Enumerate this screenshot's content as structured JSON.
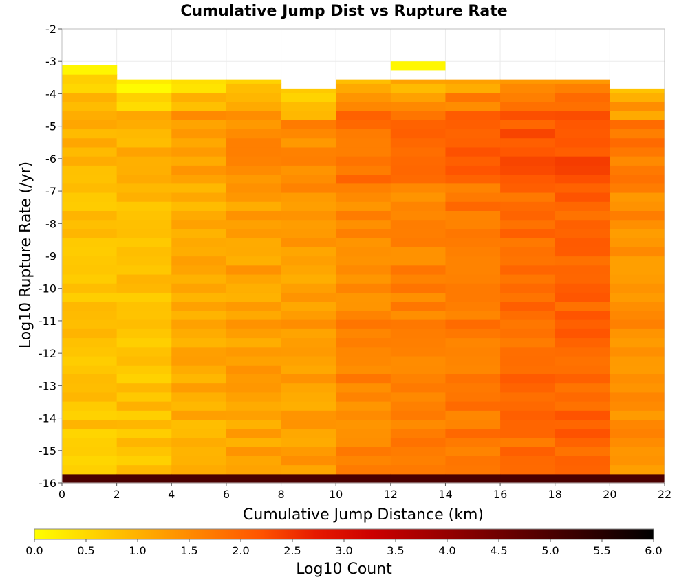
{
  "chart_data": {
    "type": "heatmap",
    "title": "Cumulative Jump Dist vs Rupture Rate",
    "xlabel": "Cumulative Jump Distance (km)",
    "ylabel": "Log10 Rupture Rate (/yr)",
    "xlim": [
      0,
      22
    ],
    "ylim": [
      -16,
      -2
    ],
    "x_ticks": [
      "0",
      "2",
      "4",
      "6",
      "8",
      "10",
      "12",
      "14",
      "16",
      "18",
      "20",
      "22"
    ],
    "y_ticks": [
      "-2",
      "-3",
      "-4",
      "-5",
      "-6",
      "-7",
      "-8",
      "-9",
      "-10",
      "-11",
      "-12",
      "-13",
      "-14",
      "-15",
      "-16"
    ],
    "x_bin_edges": [
      0,
      2,
      4,
      6,
      8,
      10,
      12,
      14,
      16,
      18,
      20,
      22
    ],
    "y_bin_size": 0.28,
    "y_bin_start": -16,
    "y_bin_count": 46,
    "column_tops": [
      -3.0,
      -3.56,
      -3.56,
      -3.56,
      -3.84,
      -3.56,
      -3.56,
      -3.56,
      -3.56,
      -3.56,
      -3.84
    ],
    "column_base_log10_count": [
      0.75,
      0.8,
      1.05,
      1.2,
      1.25,
      1.55,
      1.6,
      1.75,
      1.9,
      2.0,
      1.45
    ],
    "bottom_row_log10_count": 5.0,
    "isolated_cells": [
      {
        "x_from": 12,
        "x_to": 14,
        "y_from": -3.28,
        "y_to": -3.0,
        "log10_count": 0.1
      }
    ],
    "grid": true,
    "colorbar": {
      "label": "Log10 Count",
      "range": [
        0,
        6
      ],
      "ticks": [
        "0.0",
        "0.5",
        "1.0",
        "1.5",
        "2.0",
        "2.5",
        "3.0",
        "3.5",
        "4.0",
        "4.5",
        "5.0",
        "5.5",
        "6.0"
      ],
      "colormap": [
        "#ffff00",
        "#ffd500",
        "#ffaa00",
        "#ff8000",
        "#ff5500",
        "#e61a00",
        "#cc0000",
        "#a30000",
        "#7a0000",
        "#520000",
        "#290000",
        "#000000"
      ]
    }
  }
}
